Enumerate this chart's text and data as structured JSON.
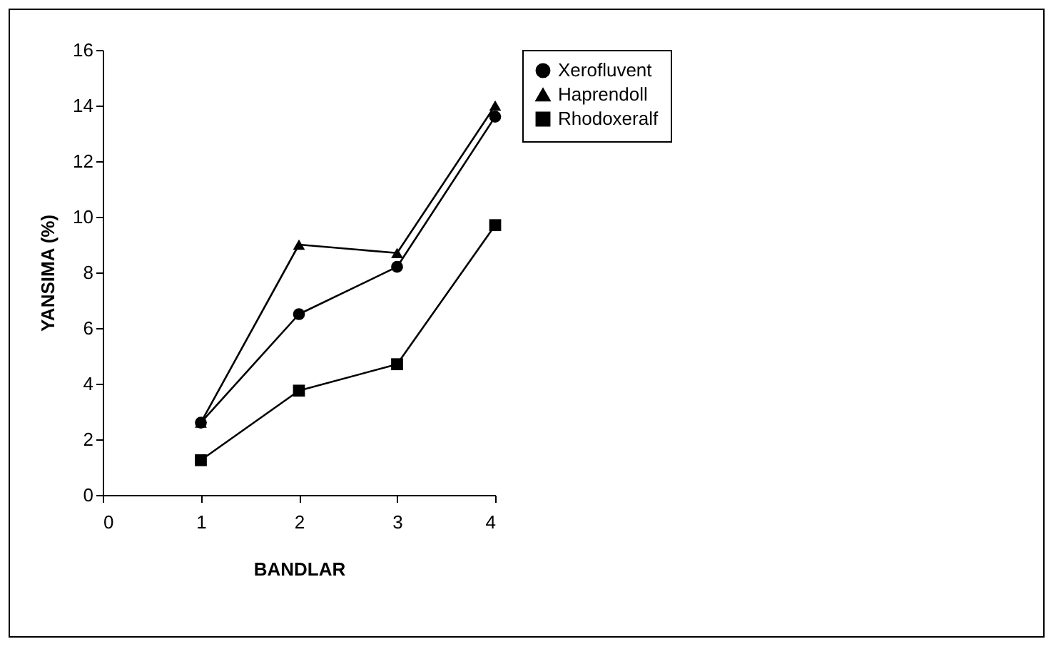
{
  "chart_data": {
    "type": "line",
    "xlabel": "BANDLAR",
    "ylabel": "YANSIMA (%)",
    "x": [
      1,
      2,
      3,
      4
    ],
    "xlim": [
      0,
      4
    ],
    "xticks": [
      0,
      1,
      2,
      3,
      4
    ],
    "ylim": [
      0,
      16
    ],
    "yticks": [
      0,
      2,
      4,
      6,
      8,
      10,
      12,
      14,
      16
    ],
    "legend": "right",
    "grid": false,
    "series": [
      {
        "name": "Xerofluvent",
        "color": "#000000",
        "marker": "circle",
        "values": [
          2.6,
          6.5,
          8.2,
          13.6
        ]
      },
      {
        "name": "Haprendoll",
        "color": "#000000",
        "marker": "triangle",
        "values": [
          2.6,
          9.0,
          8.7,
          14.0
        ]
      },
      {
        "name": "Rhodoxeralf",
        "color": "#000000",
        "marker": "square",
        "values": [
          1.25,
          3.75,
          4.7,
          9.7
        ]
      }
    ]
  }
}
